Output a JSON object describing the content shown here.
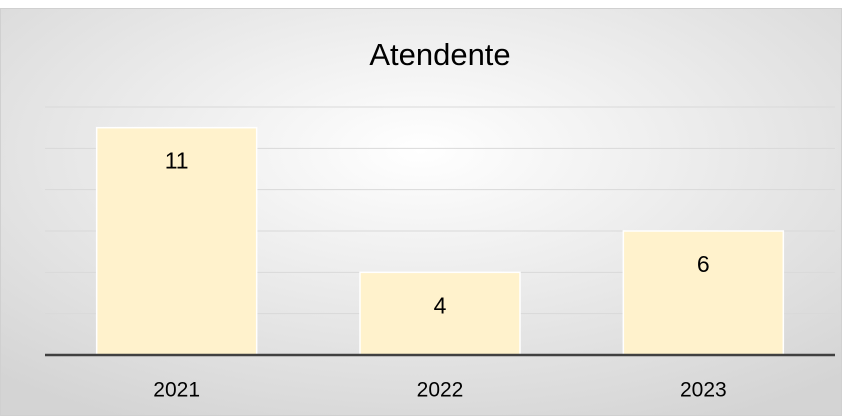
{
  "chart_data": {
    "type": "bar",
    "title": "Atendente",
    "categories": [
      "2021",
      "2022",
      "2023"
    ],
    "values": [
      11,
      4,
      6
    ],
    "color": "#fff2cc",
    "ylim": [
      0,
      12
    ],
    "yticks": [
      0,
      2,
      4,
      6,
      8,
      10,
      12
    ],
    "grid": true
  }
}
